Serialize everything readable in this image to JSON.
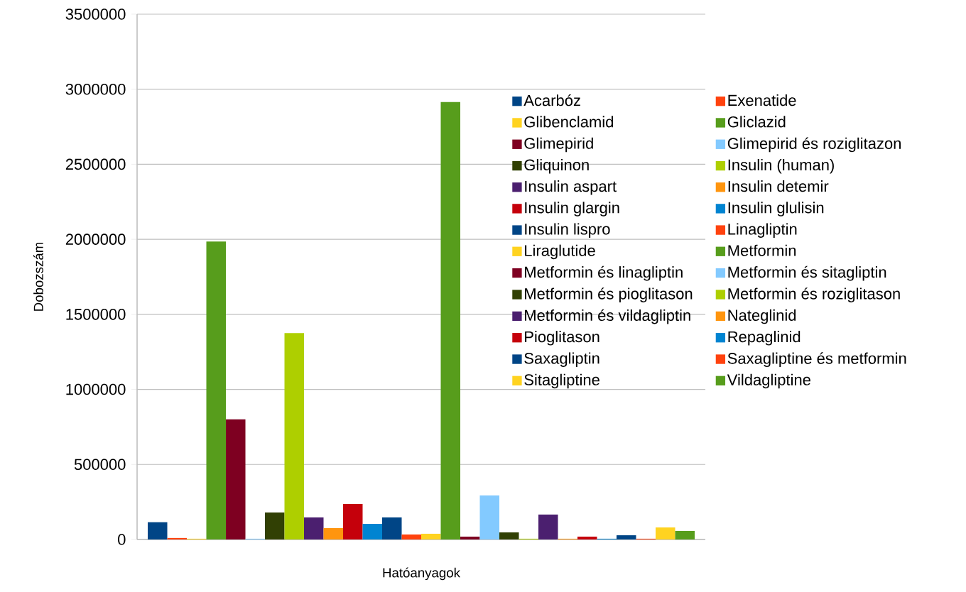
{
  "chart_data": {
    "type": "bar",
    "xlabel": "Hatóanyagok",
    "ylabel": "Dobozszám",
    "categories": [
      null
    ],
    "ylim": [
      0,
      3500000
    ],
    "yticks": [
      0,
      500000,
      1000000,
      1500000,
      2000000,
      2500000,
      3000000,
      3500000
    ],
    "grid": "y",
    "legend": "right",
    "series": [
      {
        "name": "Acarbóz",
        "color": "#004586",
        "values": [
          115000
        ]
      },
      {
        "name": "Exenatide",
        "color": "#ff420e",
        "values": [
          10000
        ]
      },
      {
        "name": "Glibenclamid",
        "color": "#ffd320",
        "values": [
          5000
        ]
      },
      {
        "name": "Gliclazid",
        "color": "#579d1c",
        "values": [
          1985000
        ]
      },
      {
        "name": "Glimepirid",
        "color": "#7e0021",
        "values": [
          800000
        ]
      },
      {
        "name": "Glimepirid és roziglitazon",
        "color": "#83caff",
        "values": [
          5000
        ]
      },
      {
        "name": "Gliquinon",
        "color": "#314004",
        "values": [
          180000
        ]
      },
      {
        "name": "Insulin (human)",
        "color": "#aecf00",
        "values": [
          1375000
        ]
      },
      {
        "name": "Insulin aspart",
        "color": "#4b1f6f",
        "values": [
          147000
        ]
      },
      {
        "name": "Insulin detemir",
        "color": "#ff950e",
        "values": [
          76000
        ]
      },
      {
        "name": "Insulin glargin",
        "color": "#c5000b",
        "values": [
          236000
        ]
      },
      {
        "name": "Insulin glulisin",
        "color": "#0084d1",
        "values": [
          104000
        ]
      },
      {
        "name": "Insulin lispro",
        "color": "#004586",
        "values": [
          147000
        ]
      },
      {
        "name": "Linagliptin",
        "color": "#ff420e",
        "values": [
          33000
        ]
      },
      {
        "name": "Liraglutide",
        "color": "#ffd320",
        "values": [
          38000
        ]
      },
      {
        "name": "Metformin",
        "color": "#579d1c",
        "values": [
          2915000
        ]
      },
      {
        "name": "Metformin és linagliptin",
        "color": "#7e0021",
        "values": [
          19000
        ]
      },
      {
        "name": "Metformin és sitagliptin",
        "color": "#83caff",
        "values": [
          293000
        ]
      },
      {
        "name": "Metformin és pioglitason",
        "color": "#314004",
        "values": [
          47000
        ]
      },
      {
        "name": "Metformin és roziglitason",
        "color": "#aecf00",
        "values": [
          5000
        ]
      },
      {
        "name": "Metformin és vildagliptin",
        "color": "#4b1f6f",
        "values": [
          166000
        ]
      },
      {
        "name": "Nateglinid",
        "color": "#ff950e",
        "values": [
          5000
        ]
      },
      {
        "name": "Pioglitason",
        "color": "#c5000b",
        "values": [
          19000
        ]
      },
      {
        "name": "Repaglinid",
        "color": "#0084d1",
        "values": [
          5000
        ]
      },
      {
        "name": "Saxagliptin",
        "color": "#004586",
        "values": [
          28000
        ]
      },
      {
        "name": "Saxagliptine és metformin",
        "color": "#ff420e",
        "values": [
          5000
        ]
      },
      {
        "name": "Sitagliptine",
        "color": "#ffd320",
        "values": [
          80000
        ]
      },
      {
        "name": "Vildagliptine",
        "color": "#579d1c",
        "values": [
          57000
        ]
      }
    ]
  }
}
